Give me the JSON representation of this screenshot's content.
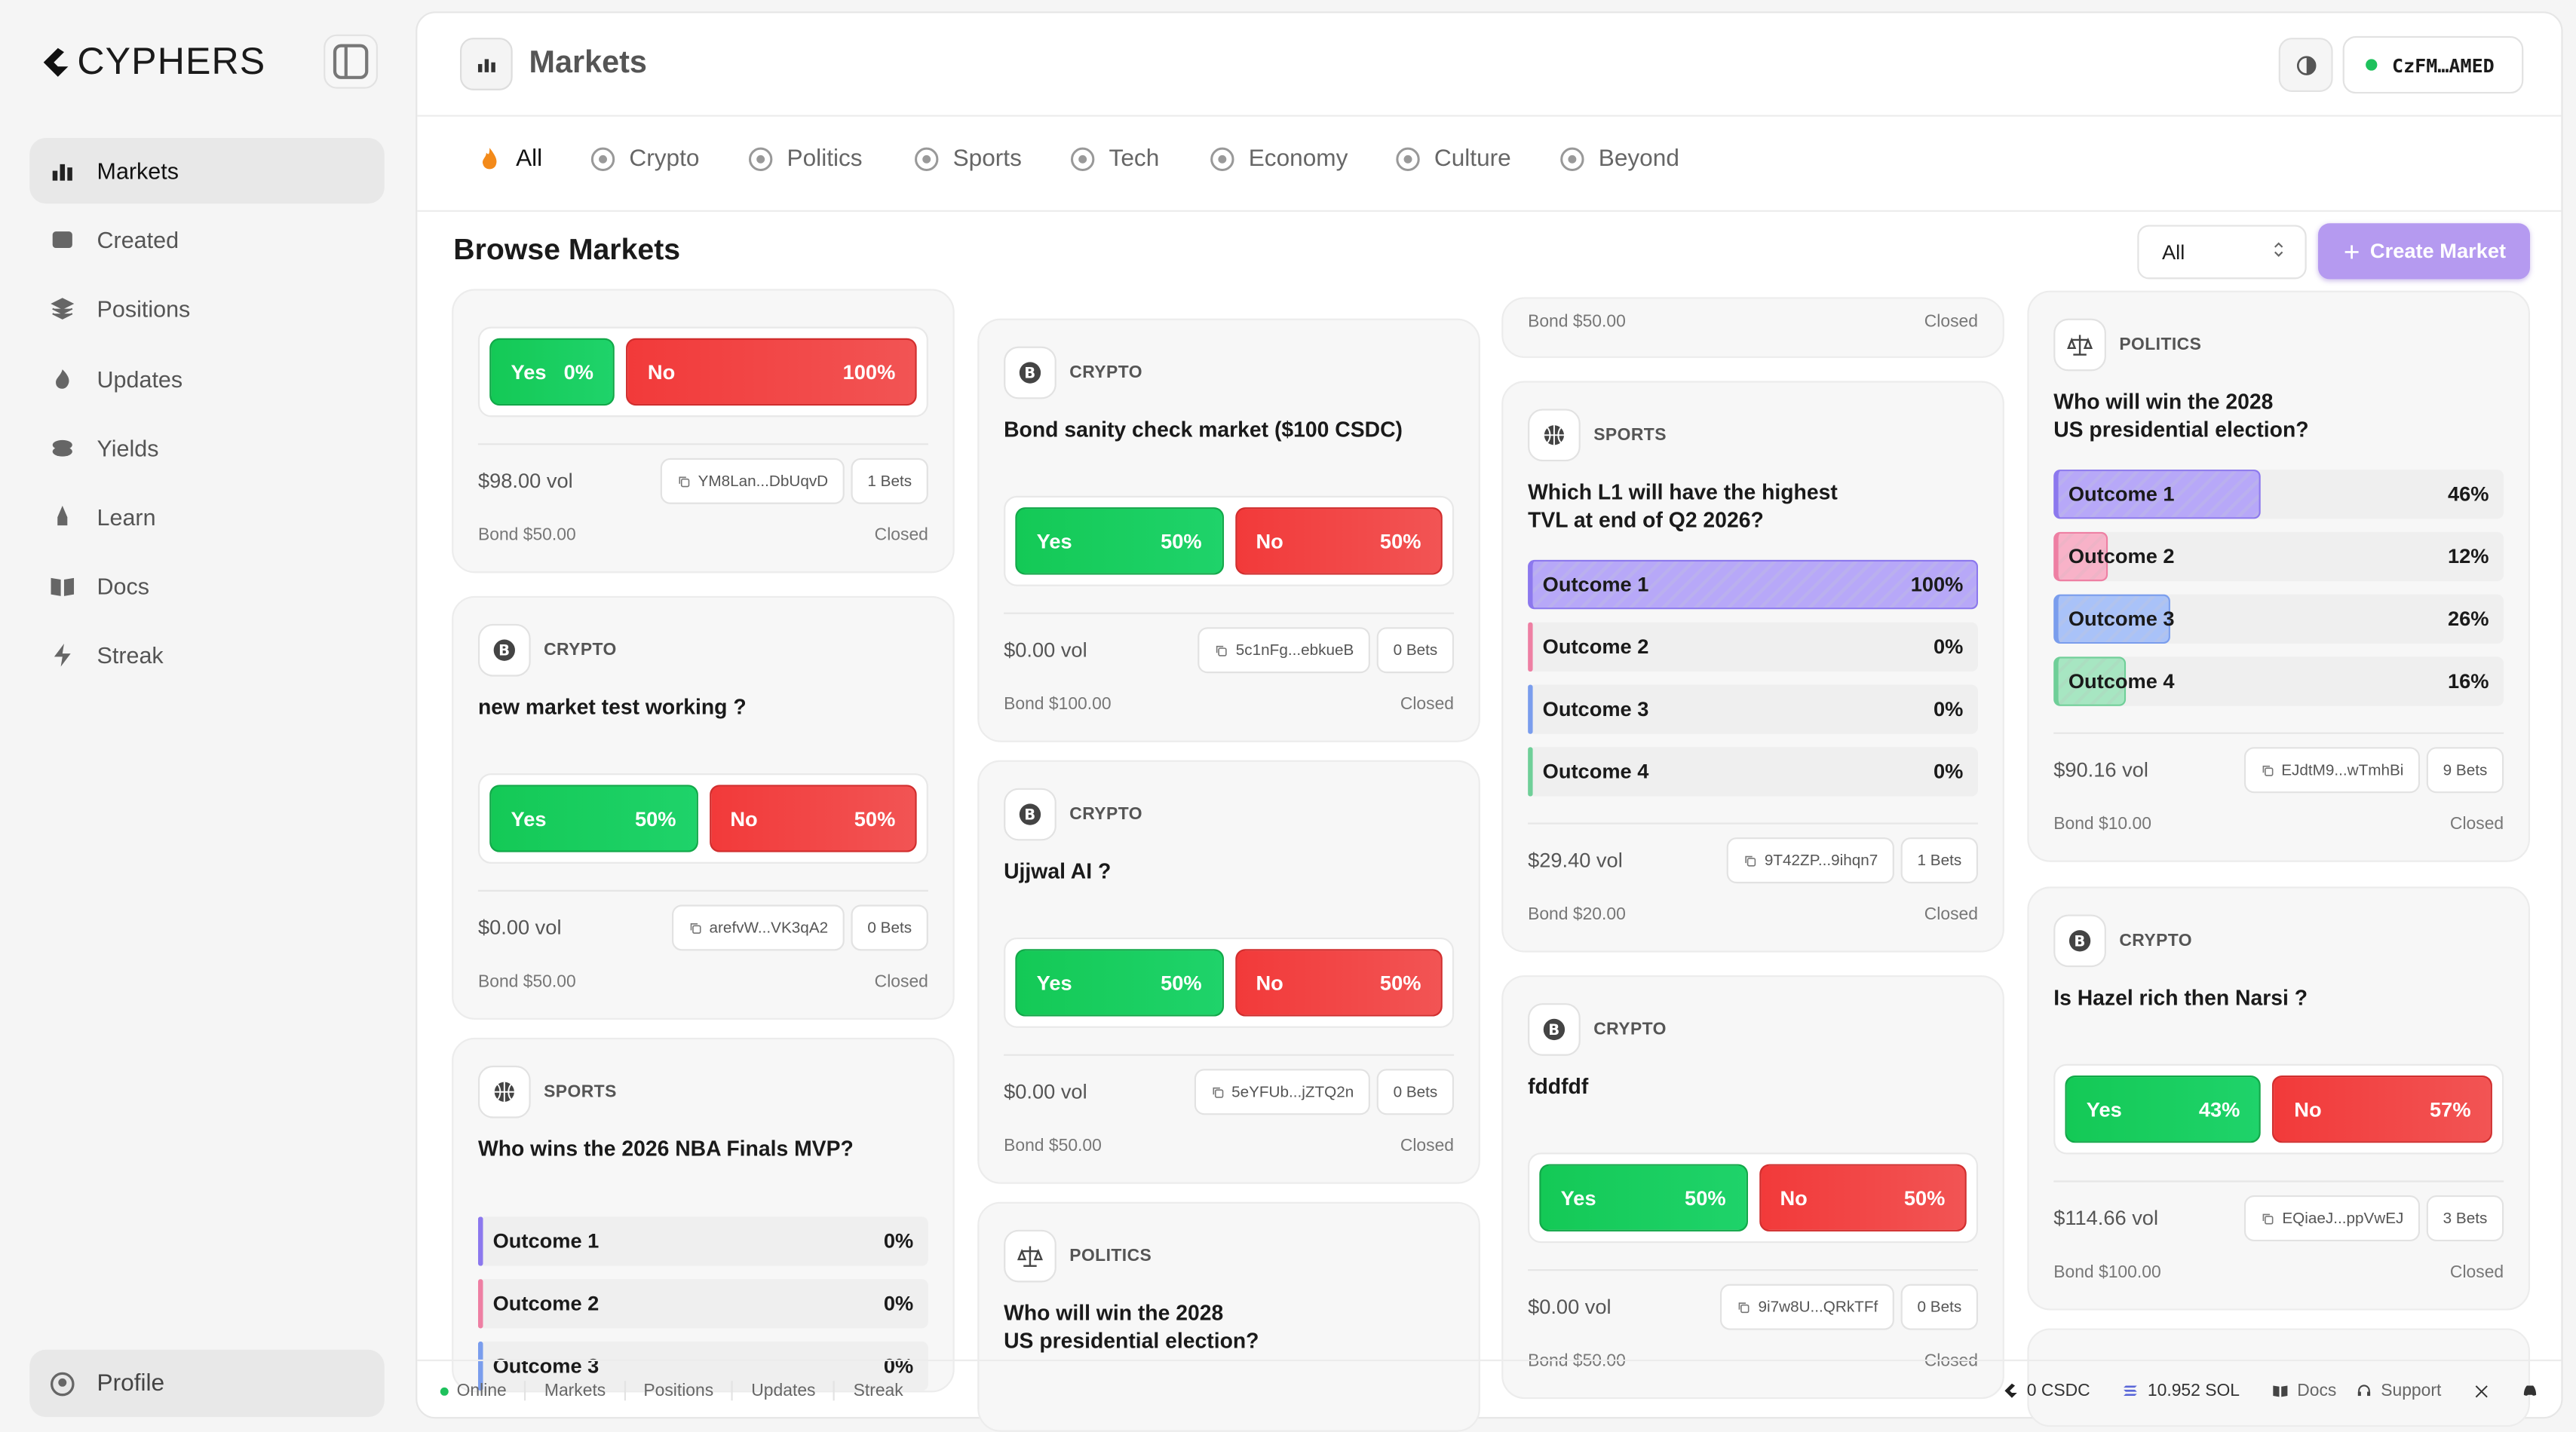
{
  "sidebar": {
    "brand": "CYPHERS",
    "nav": [
      "Markets",
      "Created",
      "Positions",
      "Updates",
      "Yields",
      "Learn",
      "Docs",
      "Streak"
    ],
    "profile": "Profile"
  },
  "header": {
    "title": "Markets",
    "wallet": "CzFM…AMED"
  },
  "tabs": [
    "All",
    "Crypto",
    "Politics",
    "Sports",
    "Tech",
    "Economy",
    "Culture",
    "Beyond"
  ],
  "browse": {
    "title": "Browse Markets",
    "filter": "All",
    "create": "Create Market"
  },
  "columns": [
    [
      {
        "outcomes": [
          {
            "label": "Yes",
            "pct": "0%"
          },
          {
            "label": "No",
            "pct": "100%"
          }
        ],
        "volume": "$98.00 vol",
        "address": "YM8Lan...DbUqvD",
        "bets": "1 Bets",
        "bond": "Bond $50.00",
        "status": "Closed"
      },
      {
        "category": "CRYPTO",
        "question": "new market test working ?",
        "outcomes": [
          {
            "label": "Yes",
            "pct": "50%"
          },
          {
            "label": "No",
            "pct": "50%"
          }
        ],
        "volume": "$0.00 vol",
        "address": "arefvW...VK3qA2",
        "bets": "0 Bets",
        "bond": "Bond $50.00",
        "status": "Closed"
      },
      {
        "category": "SPORTS",
        "question": "Who wins the 2026 NBA Finals MVP?",
        "outcomes": [
          {
            "label": "Outcome 1",
            "pct": "0%"
          },
          {
            "label": "Outcome 2",
            "pct": "0%"
          },
          {
            "label": "Outcome 3",
            "pct": "0%"
          }
        ]
      }
    ],
    [
      {
        "category": "CRYPTO",
        "question": "Bond sanity check market ($100 CSDC)",
        "outcomes": [
          {
            "label": "Yes",
            "pct": "50%"
          },
          {
            "label": "No",
            "pct": "50%"
          }
        ],
        "volume": "$0.00 vol",
        "address": "5c1nFg...ebkueB",
        "bets": "0 Bets",
        "bond": "Bond $100.00",
        "status": "Closed"
      },
      {
        "category": "CRYPTO",
        "question": "Ujjwal AI ?",
        "outcomes": [
          {
            "label": "Yes",
            "pct": "50%"
          },
          {
            "label": "No",
            "pct": "50%"
          }
        ],
        "volume": "$0.00 vol",
        "address": "5eYFUb...jZTQ2n",
        "bets": "0 Bets",
        "bond": "Bond $50.00",
        "status": "Closed"
      },
      {
        "category": "POLITICS",
        "question": "Who will win the 2028\nUS presidential election?"
      }
    ],
    [
      {
        "bond": "Bond $50.00",
        "status": "Closed"
      },
      {
        "category": "SPORTS",
        "question": "Which L1 will have the highest\nTVL at end of Q2 2026?",
        "outcomes": [
          {
            "label": "Outcome 1",
            "pct": "100%"
          },
          {
            "label": "Outcome 2",
            "pct": "0%"
          },
          {
            "label": "Outcome 3",
            "pct": "0%"
          },
          {
            "label": "Outcome 4",
            "pct": "0%"
          }
        ],
        "volume": "$29.40 vol",
        "address": "9T42ZP...9ihqn7",
        "bets": "1 Bets",
        "bond": "Bond $20.00",
        "status": "Closed"
      },
      {
        "category": "CRYPTO",
        "question": "fddfdf",
        "outcomes": [
          {
            "label": "Yes",
            "pct": "50%"
          },
          {
            "label": "No",
            "pct": "50%"
          }
        ],
        "volume": "$0.00 vol",
        "address": "9i7w8U...QRkTFf",
        "bets": "0 Bets",
        "bond": "Bond $50.00",
        "status": "Closed"
      }
    ],
    [
      {
        "category": "POLITICS",
        "question": "Who will win the 2028\nUS presidential election?",
        "outcomes": [
          {
            "label": "Outcome 1",
            "pct": "46%"
          },
          {
            "label": "Outcome 2",
            "pct": "12%"
          },
          {
            "label": "Outcome 3",
            "pct": "26%"
          },
          {
            "label": "Outcome 4",
            "pct": "16%"
          }
        ],
        "volume": "$90.16 vol",
        "address": "EJdtM9...wTmhBi",
        "bets": "9 Bets",
        "bond": "Bond $10.00",
        "status": "Closed"
      },
      {
        "category": "CRYPTO",
        "question": "Is Hazel rich then Narsi ?",
        "outcomes": [
          {
            "label": "Yes",
            "pct": "43%"
          },
          {
            "label": "No",
            "pct": "57%"
          }
        ],
        "volume": "$114.66 vol",
        "address": "EQiaeJ...ppVwEJ",
        "bets": "3 Bets",
        "bond": "Bond $100.00",
        "status": "Closed"
      }
    ]
  ],
  "footer": {
    "left": [
      "Online",
      "Markets",
      "Positions",
      "Updates",
      "Streak"
    ],
    "balances": [
      "0 CSDC",
      "10.952 SOL"
    ],
    "links": [
      "Docs",
      "Support"
    ]
  }
}
